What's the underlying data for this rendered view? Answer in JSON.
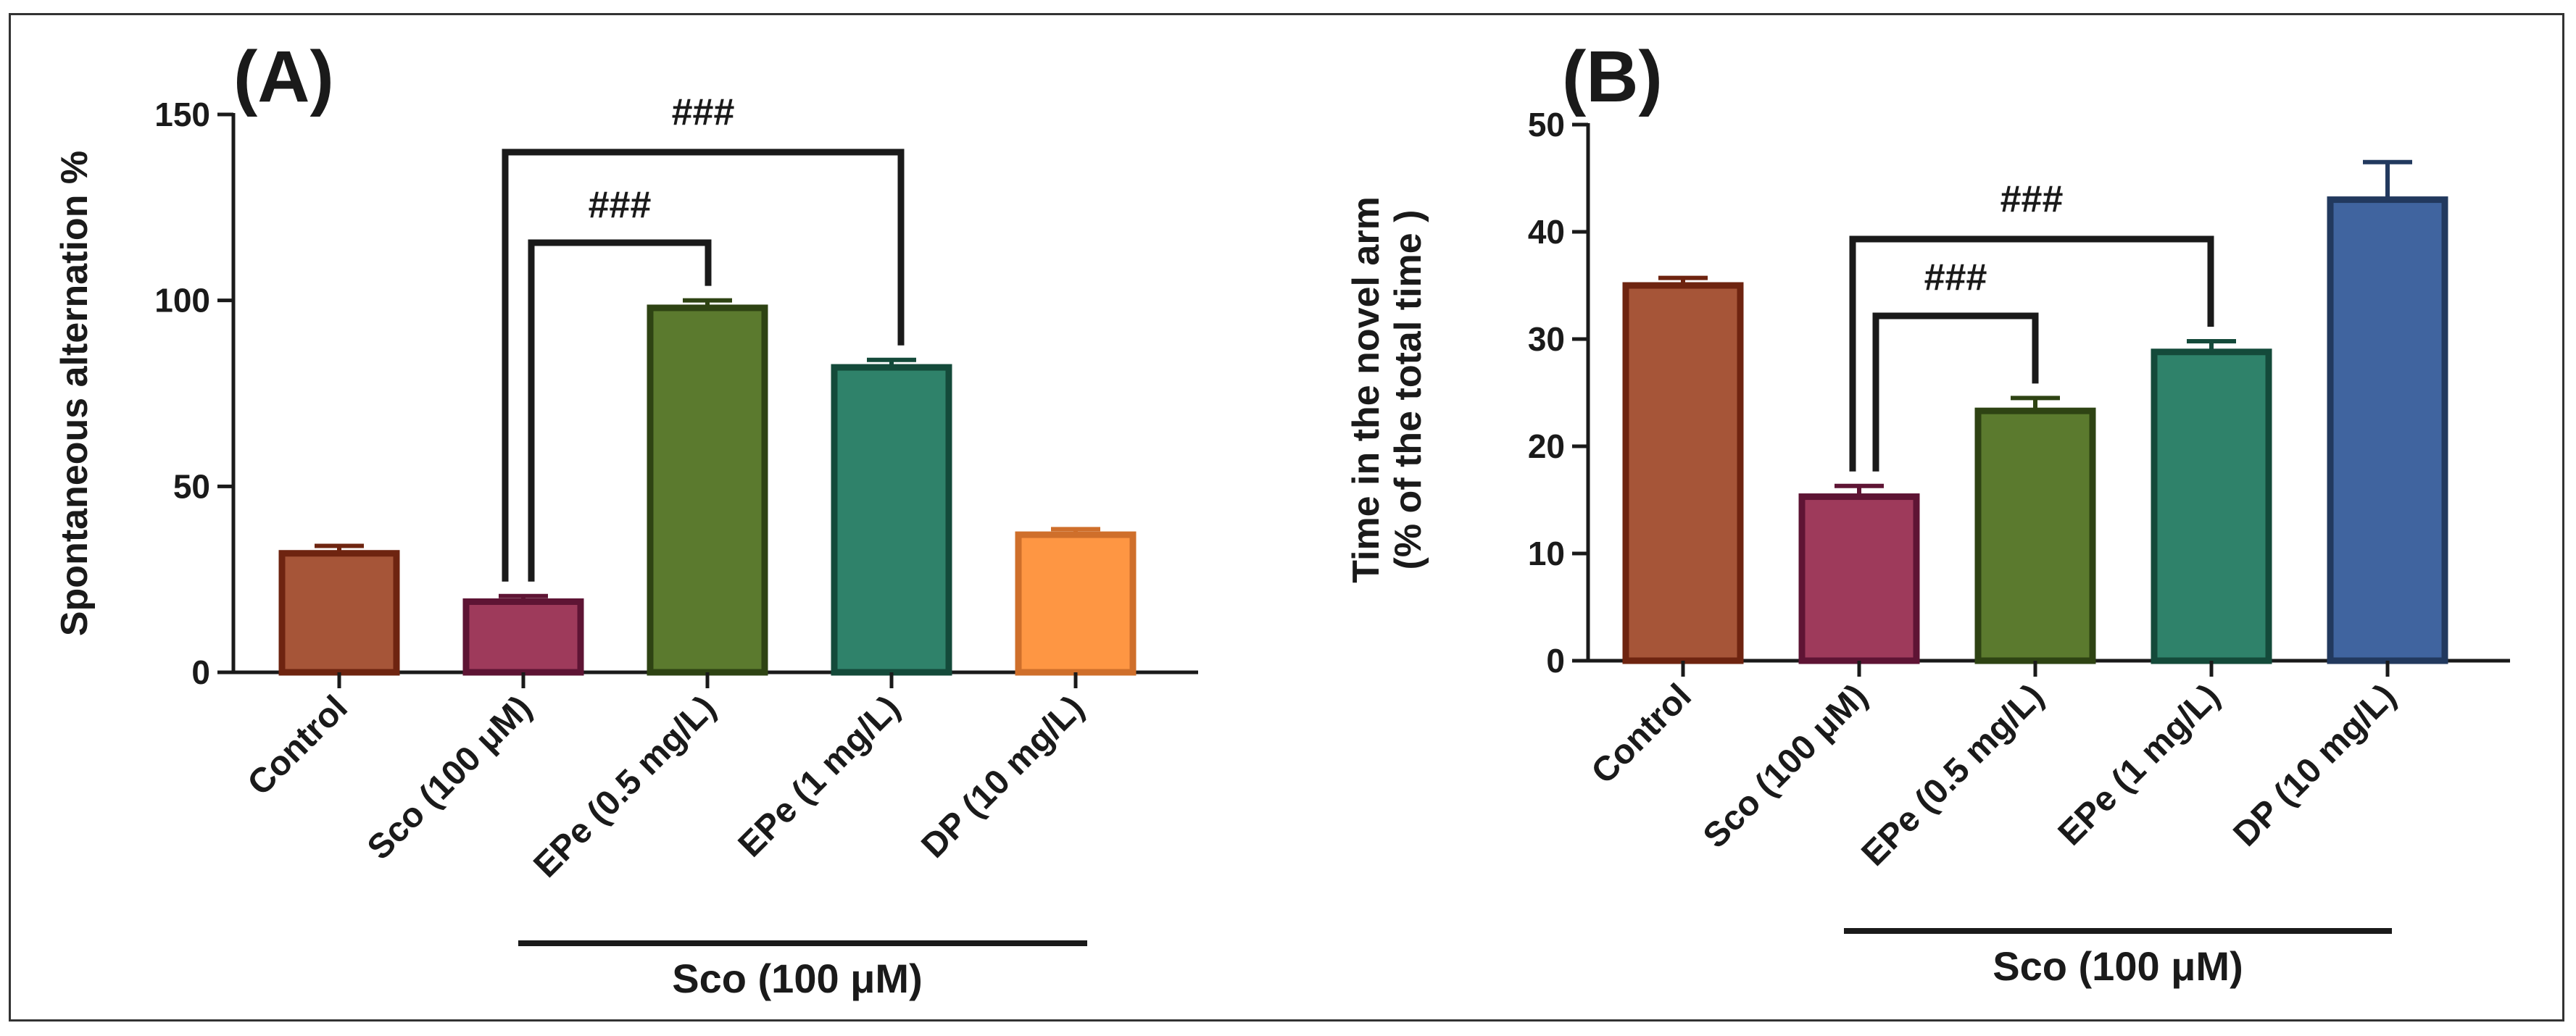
{
  "chart_data": [
    {
      "panel": "(A)",
      "type": "bar",
      "ylabel": "Spontaneous alternation %",
      "ylim": [
        0,
        150
      ],
      "yticks": [
        0,
        50,
        100,
        150
      ],
      "categories": [
        "Control",
        "Sco (100 μM)",
        "EPe (0.5 mg/L)",
        "EPe (1 mg/L)",
        "DP (10 mg/L)"
      ],
      "values": [
        32,
        19,
        98,
        82,
        37
      ],
      "errors": [
        2,
        1.5,
        2,
        2,
        1.5
      ],
      "fill_colors": [
        "#a65538",
        "#9e3a5b",
        "#5b7a2e",
        "#2f826a",
        "#fe9643"
      ],
      "stroke_colors": [
        "#6e2410",
        "#5e1434",
        "#2e4313",
        "#144a3a",
        "#cf6f2b"
      ],
      "group_label": "Sco (100 μM)",
      "comparisons": [
        {
          "from": 1,
          "to": 2,
          "label": "###"
        },
        {
          "from": 1,
          "to": 3,
          "label": "###"
        }
      ]
    },
    {
      "panel": "(B)",
      "type": "bar",
      "ylabel_line1": "Time in the novel arm",
      "ylabel_line2": "(% of the total time )",
      "ylim": [
        0,
        50
      ],
      "yticks": [
        0,
        10,
        20,
        30,
        40,
        50
      ],
      "categories": [
        "Control",
        "Sco (100 μM)",
        "EPe (0.5 mg/L)",
        "EPe (1 mg/L)",
        "DP (10 mg/L)"
      ],
      "values": [
        35,
        15.3,
        23.3,
        28.8,
        43
      ],
      "errors": [
        0.7,
        1.0,
        1.2,
        1.0,
        3.5
      ],
      "fill_colors": [
        "#a65538",
        "#9e3a5b",
        "#5b7a2e",
        "#2f826a",
        "#40649f"
      ],
      "stroke_colors": [
        "#6e2410",
        "#5e1434",
        "#2e4313",
        "#144a3a",
        "#22395e"
      ],
      "group_label": "Sco (100 μM)",
      "comparisons": [
        {
          "from": 1,
          "to": 2,
          "label": "###"
        },
        {
          "from": 1,
          "to": 3,
          "label": "###"
        }
      ]
    }
  ]
}
